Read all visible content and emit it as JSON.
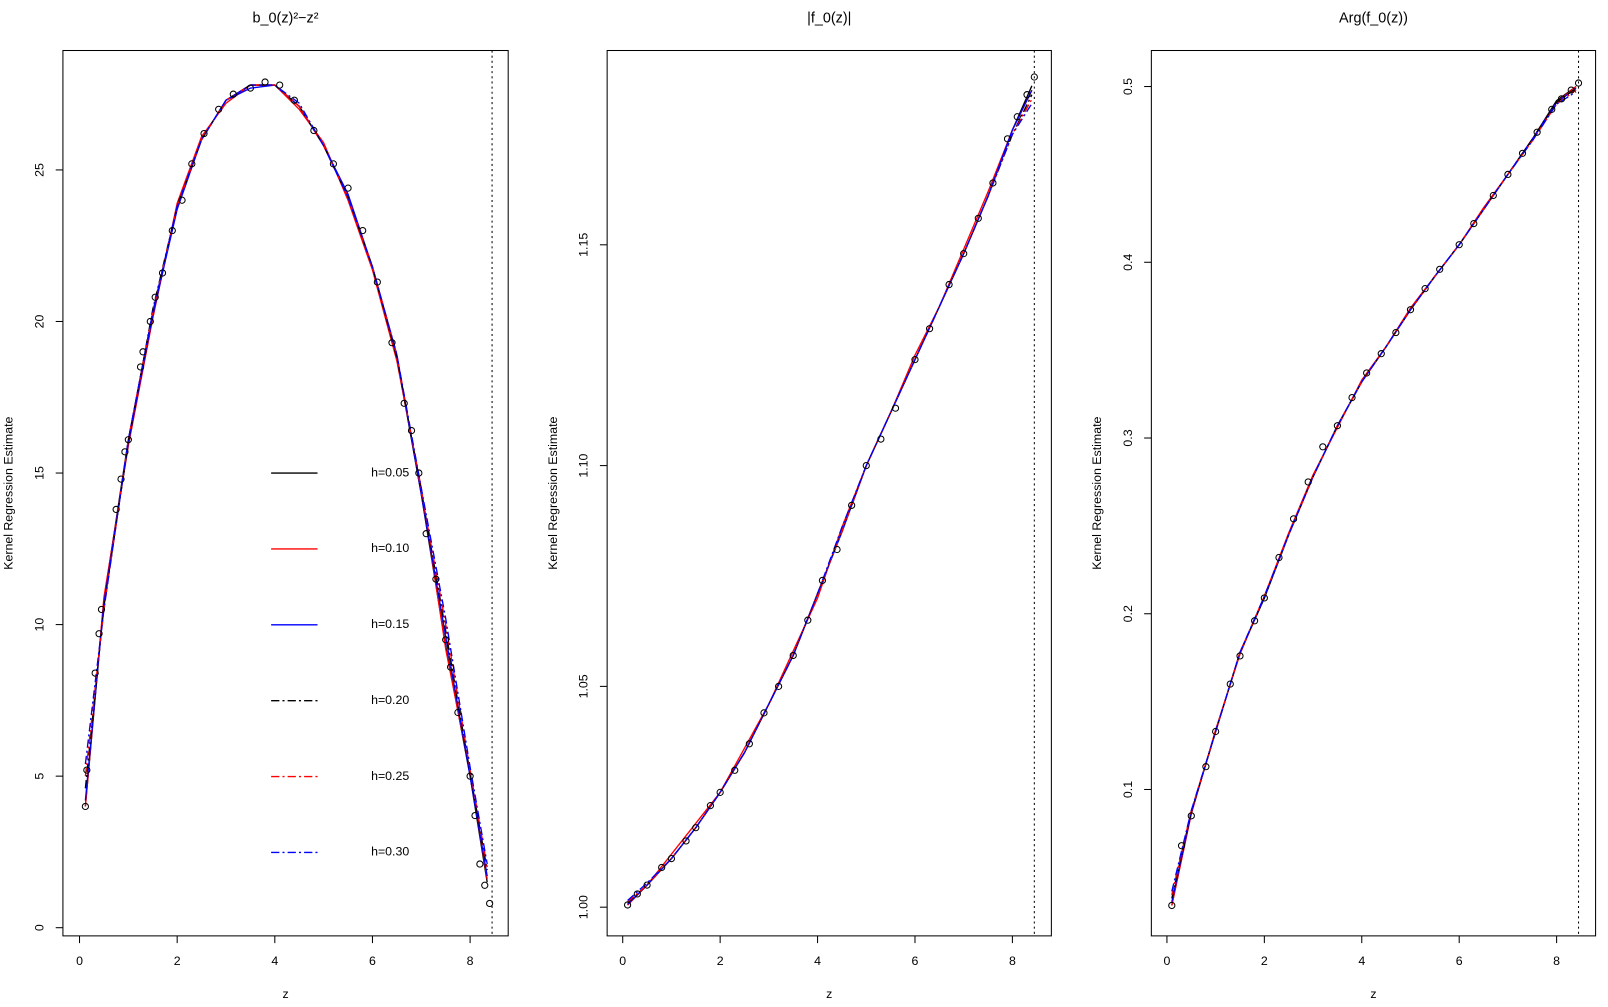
{
  "chart_data": [
    {
      "type": "line",
      "title": "b_0(z)²−z²",
      "xlabel": "z",
      "ylabel": "Kernel Regression Estimate",
      "xlim": [
        -0.34,
        8.78
      ],
      "ylim": [
        -0.27,
        28.94
      ],
      "xticks": [
        0,
        2,
        4,
        6,
        8
      ],
      "yticks": [
        0,
        5,
        10,
        15,
        20,
        25
      ],
      "vline": 8.45,
      "legend": "center",
      "points": {
        "color": "#000000",
        "x": [
          0.12,
          0.15,
          0.32,
          0.4,
          0.45,
          0.75,
          0.85,
          0.93,
          1.0,
          1.25,
          1.3,
          1.45,
          1.55,
          1.7,
          1.9,
          2.1,
          2.3,
          2.55,
          2.85,
          3.15,
          3.5,
          3.8,
          4.1,
          4.4,
          4.8,
          5.2,
          5.5,
          5.8,
          6.1,
          6.4,
          6.65,
          6.8,
          6.95,
          7.1,
          7.3,
          7.5,
          7.6,
          7.75,
          8.0,
          8.1,
          8.2,
          8.3,
          8.4
        ],
        "y": [
          4.0,
          5.2,
          8.4,
          9.7,
          10.5,
          13.8,
          14.8,
          15.7,
          16.1,
          18.5,
          19.0,
          20.0,
          20.8,
          21.6,
          23.0,
          24.0,
          25.2,
          26.2,
          27.0,
          27.5,
          27.7,
          27.9,
          27.8,
          27.3,
          26.3,
          25.2,
          24.4,
          23.0,
          21.3,
          19.3,
          17.3,
          16.4,
          15.0,
          13.0,
          11.5,
          9.5,
          8.6,
          7.1,
          5.0,
          3.7,
          2.1,
          1.4,
          0.8
        ]
      },
      "x": [
        0.12,
        0.5,
        1,
        1.5,
        2,
        2.5,
        3,
        3.5,
        4,
        4.5,
        5,
        5.5,
        6,
        6.5,
        7,
        7.5,
        8,
        8.35
      ],
      "series": [
        {
          "name": "h=0.05",
          "color": "#000000",
          "dash": "solid",
          "values": [
            4.0,
            10.8,
            16.1,
            20.3,
            23.8,
            26.0,
            27.3,
            27.8,
            27.8,
            27.1,
            25.8,
            24.1,
            21.8,
            18.8,
            14.3,
            9.3,
            5.0,
            1.5
          ]
        },
        {
          "name": "h=0.10",
          "color": "#ff0000",
          "dash": "solid",
          "values": [
            4.0,
            10.9,
            15.9,
            20.1,
            23.9,
            26.1,
            27.2,
            27.8,
            27.8,
            27.0,
            25.9,
            24.0,
            21.7,
            18.7,
            14.5,
            9.2,
            5.1,
            1.6
          ]
        },
        {
          "name": "h=0.15",
          "color": "#0000ff",
          "dash": "solid",
          "values": [
            4.2,
            10.7,
            16.0,
            20.2,
            23.7,
            26.0,
            27.3,
            27.7,
            27.8,
            27.1,
            25.8,
            24.2,
            21.8,
            18.9,
            14.3,
            9.6,
            5.0,
            1.7
          ]
        },
        {
          "name": "h=0.20",
          "color": "#000000",
          "dash": "dashdot",
          "values": [
            4.6,
            10.6,
            16.0,
            20.4,
            23.8,
            26.0,
            27.3,
            27.8,
            27.8,
            27.1,
            25.8,
            24.1,
            21.8,
            18.8,
            14.4,
            9.8,
            5.1,
            1.9
          ]
        },
        {
          "name": "h=0.25",
          "color": "#ff0000",
          "dash": "dashdot",
          "values": [
            5.0,
            10.5,
            16.1,
            20.3,
            23.8,
            26.0,
            27.3,
            27.8,
            27.8,
            27.1,
            25.8,
            24.1,
            21.8,
            18.9,
            14.4,
            10.0,
            5.2,
            2.0
          ]
        },
        {
          "name": "h=0.30",
          "color": "#0000ff",
          "dash": "dashdot",
          "values": [
            5.4,
            10.5,
            16.1,
            20.3,
            23.8,
            26.0,
            27.3,
            27.8,
            27.8,
            27.2,
            25.8,
            24.1,
            21.8,
            18.9,
            14.5,
            10.2,
            5.3,
            2.1
          ]
        }
      ]
    },
    {
      "type": "line",
      "title": "|f_0(z)|",
      "xlabel": "z",
      "ylabel": "Kernel Regression Estimate",
      "xlim": [
        -0.32,
        8.8
      ],
      "ylim": [
        0.9935,
        1.194
      ],
      "xticks": [
        0,
        2,
        4,
        6,
        8
      ],
      "yticks": [
        {
          "value": 1.0,
          "label": "1.00"
        },
        1.05,
        {
          "value": 1.1,
          "label": "1.10"
        },
        1.15
      ],
      "vline": 8.45,
      "points": {
        "color": "#000000",
        "x": [
          0.1,
          0.3,
          0.5,
          0.8,
          1.0,
          1.3,
          1.5,
          1.8,
          2.0,
          2.3,
          2.6,
          2.9,
          3.2,
          3.5,
          3.8,
          4.1,
          4.4,
          4.7,
          5.0,
          5.3,
          5.6,
          6.0,
          6.3,
          6.7,
          7.0,
          7.3,
          7.6,
          7.9,
          8.1,
          8.3,
          8.45
        ],
        "y": [
          1.0005,
          1.003,
          1.005,
          1.009,
          1.011,
          1.015,
          1.018,
          1.023,
          1.026,
          1.031,
          1.037,
          1.044,
          1.05,
          1.057,
          1.065,
          1.074,
          1.081,
          1.091,
          1.1,
          1.106,
          1.113,
          1.124,
          1.131,
          1.141,
          1.148,
          1.156,
          1.164,
          1.174,
          1.179,
          1.184,
          1.188
        ]
      },
      "x": [
        0.1,
        0.5,
        1,
        1.5,
        2,
        2.5,
        3,
        3.5,
        4,
        4.5,
        5,
        5.5,
        6,
        6.5,
        7,
        7.5,
        8,
        8.4
      ],
      "series": [
        {
          "color": "#000000",
          "dash": "solid",
          "values": [
            1.0005,
            1.005,
            1.011,
            1.018,
            1.026,
            1.035,
            1.046,
            1.057,
            1.071,
            1.085,
            1.1,
            1.112,
            1.124,
            1.136,
            1.148,
            1.161,
            1.176,
            1.186
          ]
        },
        {
          "color": "#ff0000",
          "dash": "solid",
          "values": [
            1.0005,
            1.005,
            1.012,
            1.019,
            1.026,
            1.036,
            1.046,
            1.058,
            1.07,
            1.086,
            1.1,
            1.112,
            1.125,
            1.136,
            1.149,
            1.162,
            1.176,
            1.185
          ]
        },
        {
          "color": "#0000ff",
          "dash": "solid",
          "values": [
            1.0007,
            1.005,
            1.011,
            1.018,
            1.026,
            1.035,
            1.046,
            1.057,
            1.071,
            1.085,
            1.1,
            1.112,
            1.124,
            1.136,
            1.148,
            1.161,
            1.176,
            1.185
          ]
        },
        {
          "color": "#000000",
          "dash": "dashdot",
          "values": [
            1.001,
            1.005,
            1.011,
            1.018,
            1.026,
            1.035,
            1.046,
            1.057,
            1.071,
            1.085,
            1.1,
            1.112,
            1.124,
            1.136,
            1.148,
            1.161,
            1.175,
            1.184
          ]
        },
        {
          "color": "#ff0000",
          "dash": "dashdot",
          "values": [
            1.0012,
            1.005,
            1.011,
            1.018,
            1.026,
            1.035,
            1.046,
            1.057,
            1.071,
            1.085,
            1.1,
            1.112,
            1.124,
            1.136,
            1.148,
            1.161,
            1.175,
            1.183
          ]
        },
        {
          "color": "#0000ff",
          "dash": "dashdot",
          "values": [
            1.0015,
            1.0055,
            1.011,
            1.018,
            1.026,
            1.035,
            1.046,
            1.057,
            1.071,
            1.086,
            1.1,
            1.112,
            1.124,
            1.136,
            1.148,
            1.161,
            1.175,
            1.182
          ]
        }
      ]
    },
    {
      "type": "line",
      "title": "Arg(f_0(z))",
      "xlabel": "z",
      "ylabel": "Kernel Regression Estimate",
      "xlim": [
        -0.32,
        8.8
      ],
      "ylim": [
        0.0167,
        0.5205
      ],
      "xticks": [
        0,
        2,
        4,
        6,
        8
      ],
      "yticks": [
        0.1,
        0.2,
        0.3,
        0.4,
        0.5
      ],
      "vline": 8.45,
      "points": {
        "color": "#000000",
        "x": [
          0.1,
          0.3,
          0.5,
          0.8,
          1.0,
          1.3,
          1.5,
          1.8,
          2.0,
          2.3,
          2.6,
          2.9,
          3.2,
          3.5,
          3.8,
          4.1,
          4.4,
          4.7,
          5.0,
          5.3,
          5.6,
          6.0,
          6.3,
          6.7,
          7.0,
          7.3,
          7.6,
          7.9,
          8.1,
          8.3,
          8.45
        ],
        "y": [
          0.034,
          0.068,
          0.085,
          0.113,
          0.133,
          0.16,
          0.176,
          0.196,
          0.209,
          0.232,
          0.254,
          0.275,
          0.295,
          0.307,
          0.323,
          0.337,
          0.348,
          0.36,
          0.373,
          0.385,
          0.396,
          0.41,
          0.422,
          0.438,
          0.45,
          0.462,
          0.474,
          0.487,
          0.493,
          0.498,
          0.502
        ]
      },
      "x": [
        0.1,
        0.5,
        1,
        1.5,
        2,
        2.5,
        3,
        3.5,
        4,
        4.5,
        5,
        5.5,
        6,
        6.5,
        7,
        7.5,
        8,
        8.4
      ],
      "series": [
        {
          "color": "#000000",
          "dash": "solid",
          "values": [
            0.034,
            0.087,
            0.133,
            0.178,
            0.209,
            0.245,
            0.278,
            0.307,
            0.332,
            0.352,
            0.373,
            0.392,
            0.41,
            0.43,
            0.45,
            0.47,
            0.492,
            0.5
          ]
        },
        {
          "color": "#ff0000",
          "dash": "solid",
          "values": [
            0.034,
            0.086,
            0.134,
            0.177,
            0.21,
            0.246,
            0.279,
            0.306,
            0.333,
            0.352,
            0.374,
            0.392,
            0.41,
            0.431,
            0.45,
            0.47,
            0.491,
            0.5
          ]
        },
        {
          "color": "#0000ff",
          "dash": "solid",
          "values": [
            0.036,
            0.087,
            0.133,
            0.178,
            0.209,
            0.245,
            0.278,
            0.307,
            0.332,
            0.352,
            0.373,
            0.392,
            0.41,
            0.43,
            0.45,
            0.47,
            0.491,
            0.499
          ]
        },
        {
          "color": "#000000",
          "dash": "dashdot",
          "values": [
            0.038,
            0.087,
            0.133,
            0.178,
            0.209,
            0.245,
            0.278,
            0.307,
            0.332,
            0.352,
            0.373,
            0.392,
            0.41,
            0.43,
            0.45,
            0.47,
            0.491,
            0.499
          ]
        },
        {
          "color": "#ff0000",
          "dash": "dashdot",
          "values": [
            0.04,
            0.088,
            0.133,
            0.178,
            0.21,
            0.245,
            0.278,
            0.307,
            0.332,
            0.352,
            0.373,
            0.392,
            0.41,
            0.43,
            0.45,
            0.469,
            0.49,
            0.498
          ]
        },
        {
          "color": "#0000ff",
          "dash": "dashdot",
          "values": [
            0.042,
            0.088,
            0.133,
            0.178,
            0.21,
            0.245,
            0.278,
            0.307,
            0.332,
            0.352,
            0.373,
            0.392,
            0.41,
            0.43,
            0.45,
            0.469,
            0.49,
            0.497
          ]
        }
      ]
    }
  ]
}
